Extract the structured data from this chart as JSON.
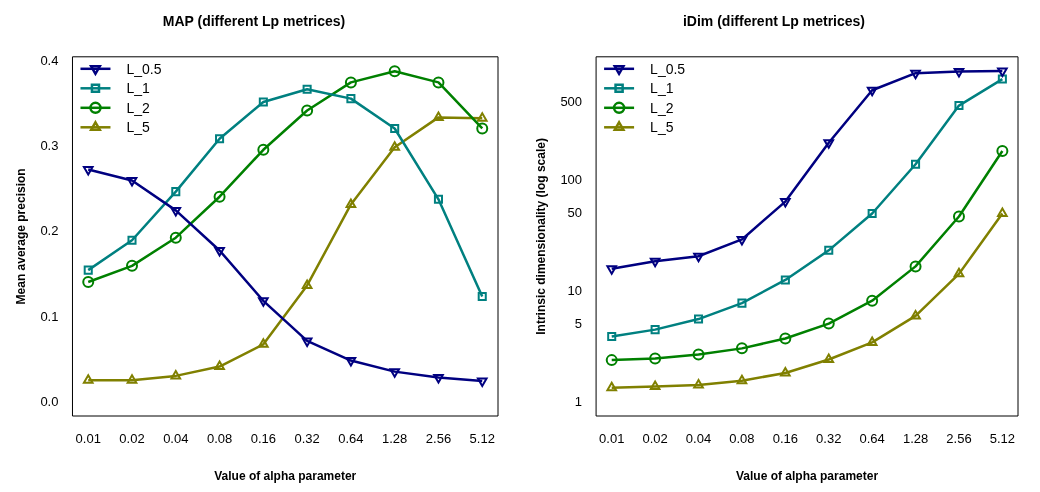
{
  "chart_data": [
    {
      "type": "line",
      "title": "MAP (different Lp metrices)",
      "xlabel": "Value of alpha parameter",
      "ylabel": "Mean average precision",
      "categories": [
        "0.01",
        "0.02",
        "0.04",
        "0.08",
        "0.16",
        "0.32",
        "0.64",
        "1.28",
        "2.56",
        "5.12"
      ],
      "series": [
        {
          "name": "L_0.5",
          "color": "#000080",
          "marker": "triangle_down",
          "values": [
            0.273,
            0.26,
            0.225,
            0.178,
            0.119,
            0.072,
            0.049,
            0.036,
            0.029,
            0.025
          ]
        },
        {
          "name": "L_1",
          "color": "#008080",
          "marker": "square",
          "values": [
            0.155,
            0.19,
            0.247,
            0.309,
            0.352,
            0.367,
            0.356,
            0.321,
            0.238,
            0.124
          ]
        },
        {
          "name": "L_2",
          "color": "#008000",
          "marker": "circle",
          "values": [
            0.141,
            0.16,
            0.193,
            0.241,
            0.296,
            0.342,
            0.375,
            0.388,
            0.375,
            0.321
          ]
        },
        {
          "name": "L_5",
          "color": "#808000",
          "marker": "triangle",
          "values": [
            0.026,
            0.026,
            0.031,
            0.042,
            0.068,
            0.137,
            0.232,
            0.299,
            0.334,
            0.333
          ]
        }
      ],
      "ylim": [
        -0.016,
        0.405
      ],
      "yticks": [
        {
          "value": 0,
          "label": "0.0"
        },
        0.1,
        0.2,
        0.3,
        0.4
      ],
      "grid": false,
      "legend": "top left",
      "line_style": "solid"
    },
    {
      "type": "line",
      "title": "iDim (different Lp metrices)",
      "xlabel": "Value of alpha parameter",
      "ylabel": "Intrinsic dimensionality (log scale)",
      "categories": [
        "0.01",
        "0.02",
        "0.04",
        "0.08",
        "0.16",
        "0.32",
        "0.64",
        "1.28",
        "2.56",
        "5.12"
      ],
      "series": [
        {
          "name": "L_0.5",
          "color": "#000080",
          "marker": "triangle_down",
          "values": [
            15.9,
            18.6,
            20.6,
            29.2,
            64,
            217,
            645,
            918,
            951,
            963
          ]
        },
        {
          "name": "L_1",
          "color": "#008080",
          "marker": "square",
          "values": [
            3.9,
            4.5,
            5.6,
            7.8,
            12.6,
            23.3,
            50,
            139,
            469,
            813
          ]
        },
        {
          "name": "L_2",
          "color": "#008000",
          "marker": "circle",
          "values": [
            2.39,
            2.47,
            2.68,
            3.05,
            3.74,
            5.1,
            8.2,
            16.7,
            47,
            183
          ]
        },
        {
          "name": "L_5",
          "color": "#808000",
          "marker": "triangle",
          "values": [
            1.35,
            1.38,
            1.43,
            1.56,
            1.83,
            2.42,
            3.45,
            5.98,
            14.3,
            50
          ]
        }
      ],
      "log": "y",
      "ylim": [
        0.75,
        1290
      ],
      "yticks": [
        1,
        5,
        10,
        50,
        100,
        500
      ],
      "grid": false,
      "legend": "top left",
      "line_style": "solid"
    }
  ]
}
